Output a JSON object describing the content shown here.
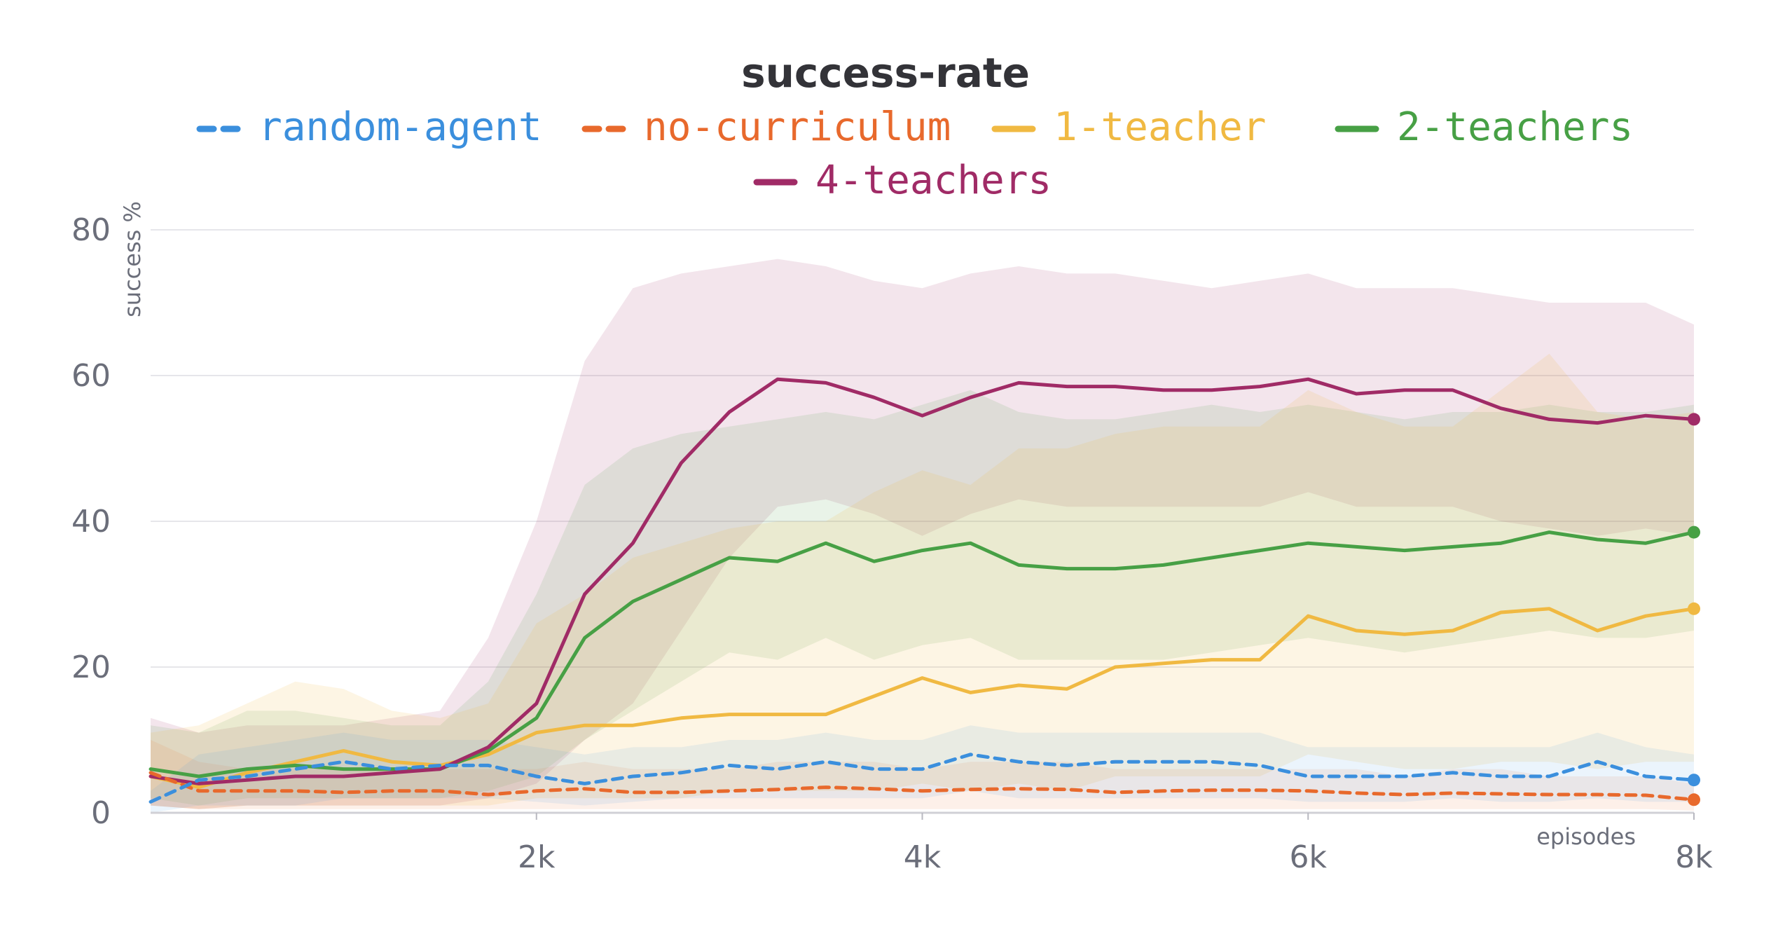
{
  "chart_data": {
    "type": "line",
    "title": "success-rate",
    "xlabel": "episodes",
    "ylabel": "success %",
    "xlim": [
      0,
      8000
    ],
    "ylim": [
      0,
      80
    ],
    "x_ticks": [
      {
        "value": 2000,
        "label": "2k"
      },
      {
        "value": 4000,
        "label": "4k"
      },
      {
        "value": 6000,
        "label": "6k"
      },
      {
        "value": 8000,
        "label": "8k"
      }
    ],
    "y_ticks": [
      {
        "value": 0,
        "label": "0"
      },
      {
        "value": 20,
        "label": "20"
      },
      {
        "value": 40,
        "label": "40"
      },
      {
        "value": 60,
        "label": "60"
      },
      {
        "value": 80,
        "label": "80"
      }
    ],
    "grid": true,
    "legend_position": "top",
    "x": [
      0,
      250,
      500,
      750,
      1000,
      1250,
      1500,
      1750,
      2000,
      2250,
      2500,
      2750,
      3000,
      3250,
      3500,
      3750,
      4000,
      4250,
      4500,
      4750,
      5000,
      5250,
      5500,
      5750,
      6000,
      6250,
      6500,
      6750,
      7000,
      7250,
      7500,
      7750,
      8000
    ],
    "series": [
      {
        "name": "random-agent",
        "color": "#3b8fdd",
        "dash": true,
        "values": [
          1.5,
          4.5,
          5,
          6,
          7,
          6,
          6.5,
          6.5,
          5,
          4,
          5,
          5.5,
          6.5,
          6,
          7,
          6,
          6,
          8,
          7,
          6.5,
          7,
          7,
          7,
          6.5,
          5,
          5,
          5,
          5.5,
          5,
          5,
          7,
          5,
          4.5
        ],
        "band": [
          [
            0,
            3
          ],
          [
            1,
            8
          ],
          [
            1,
            9
          ],
          [
            1,
            10
          ],
          [
            2,
            11
          ],
          [
            2,
            10
          ],
          [
            2,
            10
          ],
          [
            2,
            10
          ],
          [
            1.5,
            9
          ],
          [
            1,
            8
          ],
          [
            1.5,
            9
          ],
          [
            2,
            9
          ],
          [
            2,
            10
          ],
          [
            2,
            10
          ],
          [
            2,
            11
          ],
          [
            2,
            10
          ],
          [
            2,
            10
          ],
          [
            3,
            12
          ],
          [
            2,
            11
          ],
          [
            2,
            11
          ],
          [
            2,
            11
          ],
          [
            2,
            11
          ],
          [
            2,
            11
          ],
          [
            2,
            11
          ],
          [
            1.5,
            9
          ],
          [
            1.5,
            9
          ],
          [
            1.5,
            9
          ],
          [
            2,
            9
          ],
          [
            1.5,
            9
          ],
          [
            1.5,
            9
          ],
          [
            2,
            11
          ],
          [
            1.5,
            9
          ],
          [
            1.5,
            8
          ]
        ]
      },
      {
        "name": "no-curriculum",
        "color": "#e8692c",
        "dash": true,
        "values": [
          5.5,
          3,
          3,
          3,
          2.8,
          3,
          3,
          2.5,
          3,
          3.3,
          2.8,
          2.8,
          3,
          3.2,
          3.5,
          3.3,
          3,
          3.2,
          3.3,
          3.2,
          2.8,
          3,
          3.1,
          3.1,
          3,
          2.7,
          2.5,
          2.7,
          2.6,
          2.5,
          2.5,
          2.4,
          1.8
        ],
        "band": [
          [
            1,
            10
          ],
          [
            0.5,
            7
          ],
          [
            0.5,
            6
          ],
          [
            0.5,
            6
          ],
          [
            0.5,
            6
          ],
          [
            0.5,
            6
          ],
          [
            0.5,
            6
          ],
          [
            0.5,
            6
          ],
          [
            0.5,
            6
          ],
          [
            0.5,
            7
          ],
          [
            0.5,
            6
          ],
          [
            0.5,
            6
          ],
          [
            0.5,
            6
          ],
          [
            0.5,
            7
          ],
          [
            0.5,
            7
          ],
          [
            0.5,
            7
          ],
          [
            0.5,
            6
          ],
          [
            0.5,
            7
          ],
          [
            0.5,
            7
          ],
          [
            0.5,
            7
          ],
          [
            0.5,
            6
          ],
          [
            0.5,
            6
          ],
          [
            0.5,
            6
          ],
          [
            0.5,
            6
          ],
          [
            0.5,
            6
          ],
          [
            0.5,
            6
          ],
          [
            0.5,
            5
          ],
          [
            0.5,
            6
          ],
          [
            0.5,
            6
          ],
          [
            0.5,
            5
          ],
          [
            0.5,
            5
          ],
          [
            0.5,
            5
          ],
          [
            0.3,
            4
          ]
        ]
      },
      {
        "name": "1-teacher",
        "color": "#f0b942",
        "dash": false,
        "values": [
          5,
          3.5,
          5.5,
          7,
          8.5,
          7,
          6.5,
          8,
          11,
          12,
          12,
          13,
          13.5,
          13.5,
          13.5,
          16,
          18.5,
          16.5,
          17.5,
          17,
          20,
          20.5,
          21,
          21,
          27,
          25,
          24.5,
          25,
          27.5,
          28,
          25,
          27,
          28
        ],
        "band": [
          [
            1,
            11
          ],
          [
            0.5,
            12
          ],
          [
            1,
            15
          ],
          [
            1,
            18
          ],
          [
            1,
            17
          ],
          [
            1,
            14
          ],
          [
            1,
            13
          ],
          [
            1,
            15
          ],
          [
            2,
            26
          ],
          [
            2,
            30
          ],
          [
            2,
            35
          ],
          [
            2,
            37
          ],
          [
            3,
            39
          ],
          [
            3,
            40
          ],
          [
            3,
            40
          ],
          [
            3,
            44
          ],
          [
            4,
            47
          ],
          [
            3,
            45
          ],
          [
            4,
            50
          ],
          [
            3,
            50
          ],
          [
            5,
            52
          ],
          [
            5,
            53
          ],
          [
            5,
            53
          ],
          [
            5,
            53
          ],
          [
            8,
            58
          ],
          [
            7,
            55
          ],
          [
            6,
            53
          ],
          [
            6,
            53
          ],
          [
            7,
            58
          ],
          [
            7,
            63
          ],
          [
            6,
            55
          ],
          [
            7,
            54
          ],
          [
            7,
            55
          ]
        ]
      },
      {
        "name": "2-teachers",
        "color": "#47a045",
        "dash": false,
        "values": [
          6,
          5,
          6,
          6.5,
          6,
          6,
          6,
          8.5,
          13,
          24,
          29,
          32,
          35,
          34.5,
          37,
          34.5,
          36,
          37,
          34,
          33.5,
          33.5,
          34,
          35,
          36,
          37,
          36.5,
          36,
          36.5,
          37,
          38.5,
          37.5,
          37,
          38.5
        ],
        "band": [
          [
            2,
            12
          ],
          [
            1,
            11
          ],
          [
            2,
            14
          ],
          [
            2,
            14
          ],
          [
            2,
            13
          ],
          [
            2,
            12
          ],
          [
            2,
            12
          ],
          [
            3,
            18
          ],
          [
            5,
            30
          ],
          [
            10,
            45
          ],
          [
            14,
            50
          ],
          [
            18,
            52
          ],
          [
            22,
            53
          ],
          [
            21,
            54
          ],
          [
            24,
            55
          ],
          [
            21,
            54
          ],
          [
            23,
            56
          ],
          [
            24,
            58
          ],
          [
            21,
            55
          ],
          [
            21,
            54
          ],
          [
            21,
            54
          ],
          [
            21,
            55
          ],
          [
            22,
            56
          ],
          [
            23,
            55
          ],
          [
            24,
            56
          ],
          [
            23,
            55
          ],
          [
            22,
            54
          ],
          [
            23,
            55
          ],
          [
            24,
            55
          ],
          [
            25,
            56
          ],
          [
            24,
            55
          ],
          [
            24,
            55
          ],
          [
            25,
            56
          ]
        ]
      },
      {
        "name": "4-teachers",
        "color": "#a02b66",
        "dash": false,
        "values": [
          5,
          4,
          4.5,
          5,
          5,
          5.5,
          6,
          9,
          15,
          30,
          37,
          48,
          55,
          59.5,
          59,
          57,
          54.5,
          57,
          59,
          58.5,
          58.5,
          58,
          58,
          58.5,
          59.5,
          57.5,
          58,
          58,
          55.5,
          54,
          53.5,
          54.5,
          54
        ],
        "band": [
          [
            1,
            13
          ],
          [
            0.5,
            11
          ],
          [
            1,
            12
          ],
          [
            1,
            12
          ],
          [
            1,
            12
          ],
          [
            1,
            13
          ],
          [
            1,
            14
          ],
          [
            2,
            24
          ],
          [
            4,
            40
          ],
          [
            10,
            62
          ],
          [
            15,
            72
          ],
          [
            25,
            74
          ],
          [
            35,
            75
          ],
          [
            42,
            76
          ],
          [
            43,
            75
          ],
          [
            41,
            73
          ],
          [
            38,
            72
          ],
          [
            41,
            74
          ],
          [
            43,
            75
          ],
          [
            42,
            74
          ],
          [
            42,
            74
          ],
          [
            42,
            73
          ],
          [
            42,
            72
          ],
          [
            42,
            73
          ],
          [
            44,
            74
          ],
          [
            42,
            72
          ],
          [
            42,
            72
          ],
          [
            42,
            72
          ],
          [
            40,
            71
          ],
          [
            39,
            70
          ],
          [
            38,
            70
          ],
          [
            39,
            70
          ],
          [
            38,
            67
          ]
        ]
      }
    ]
  }
}
